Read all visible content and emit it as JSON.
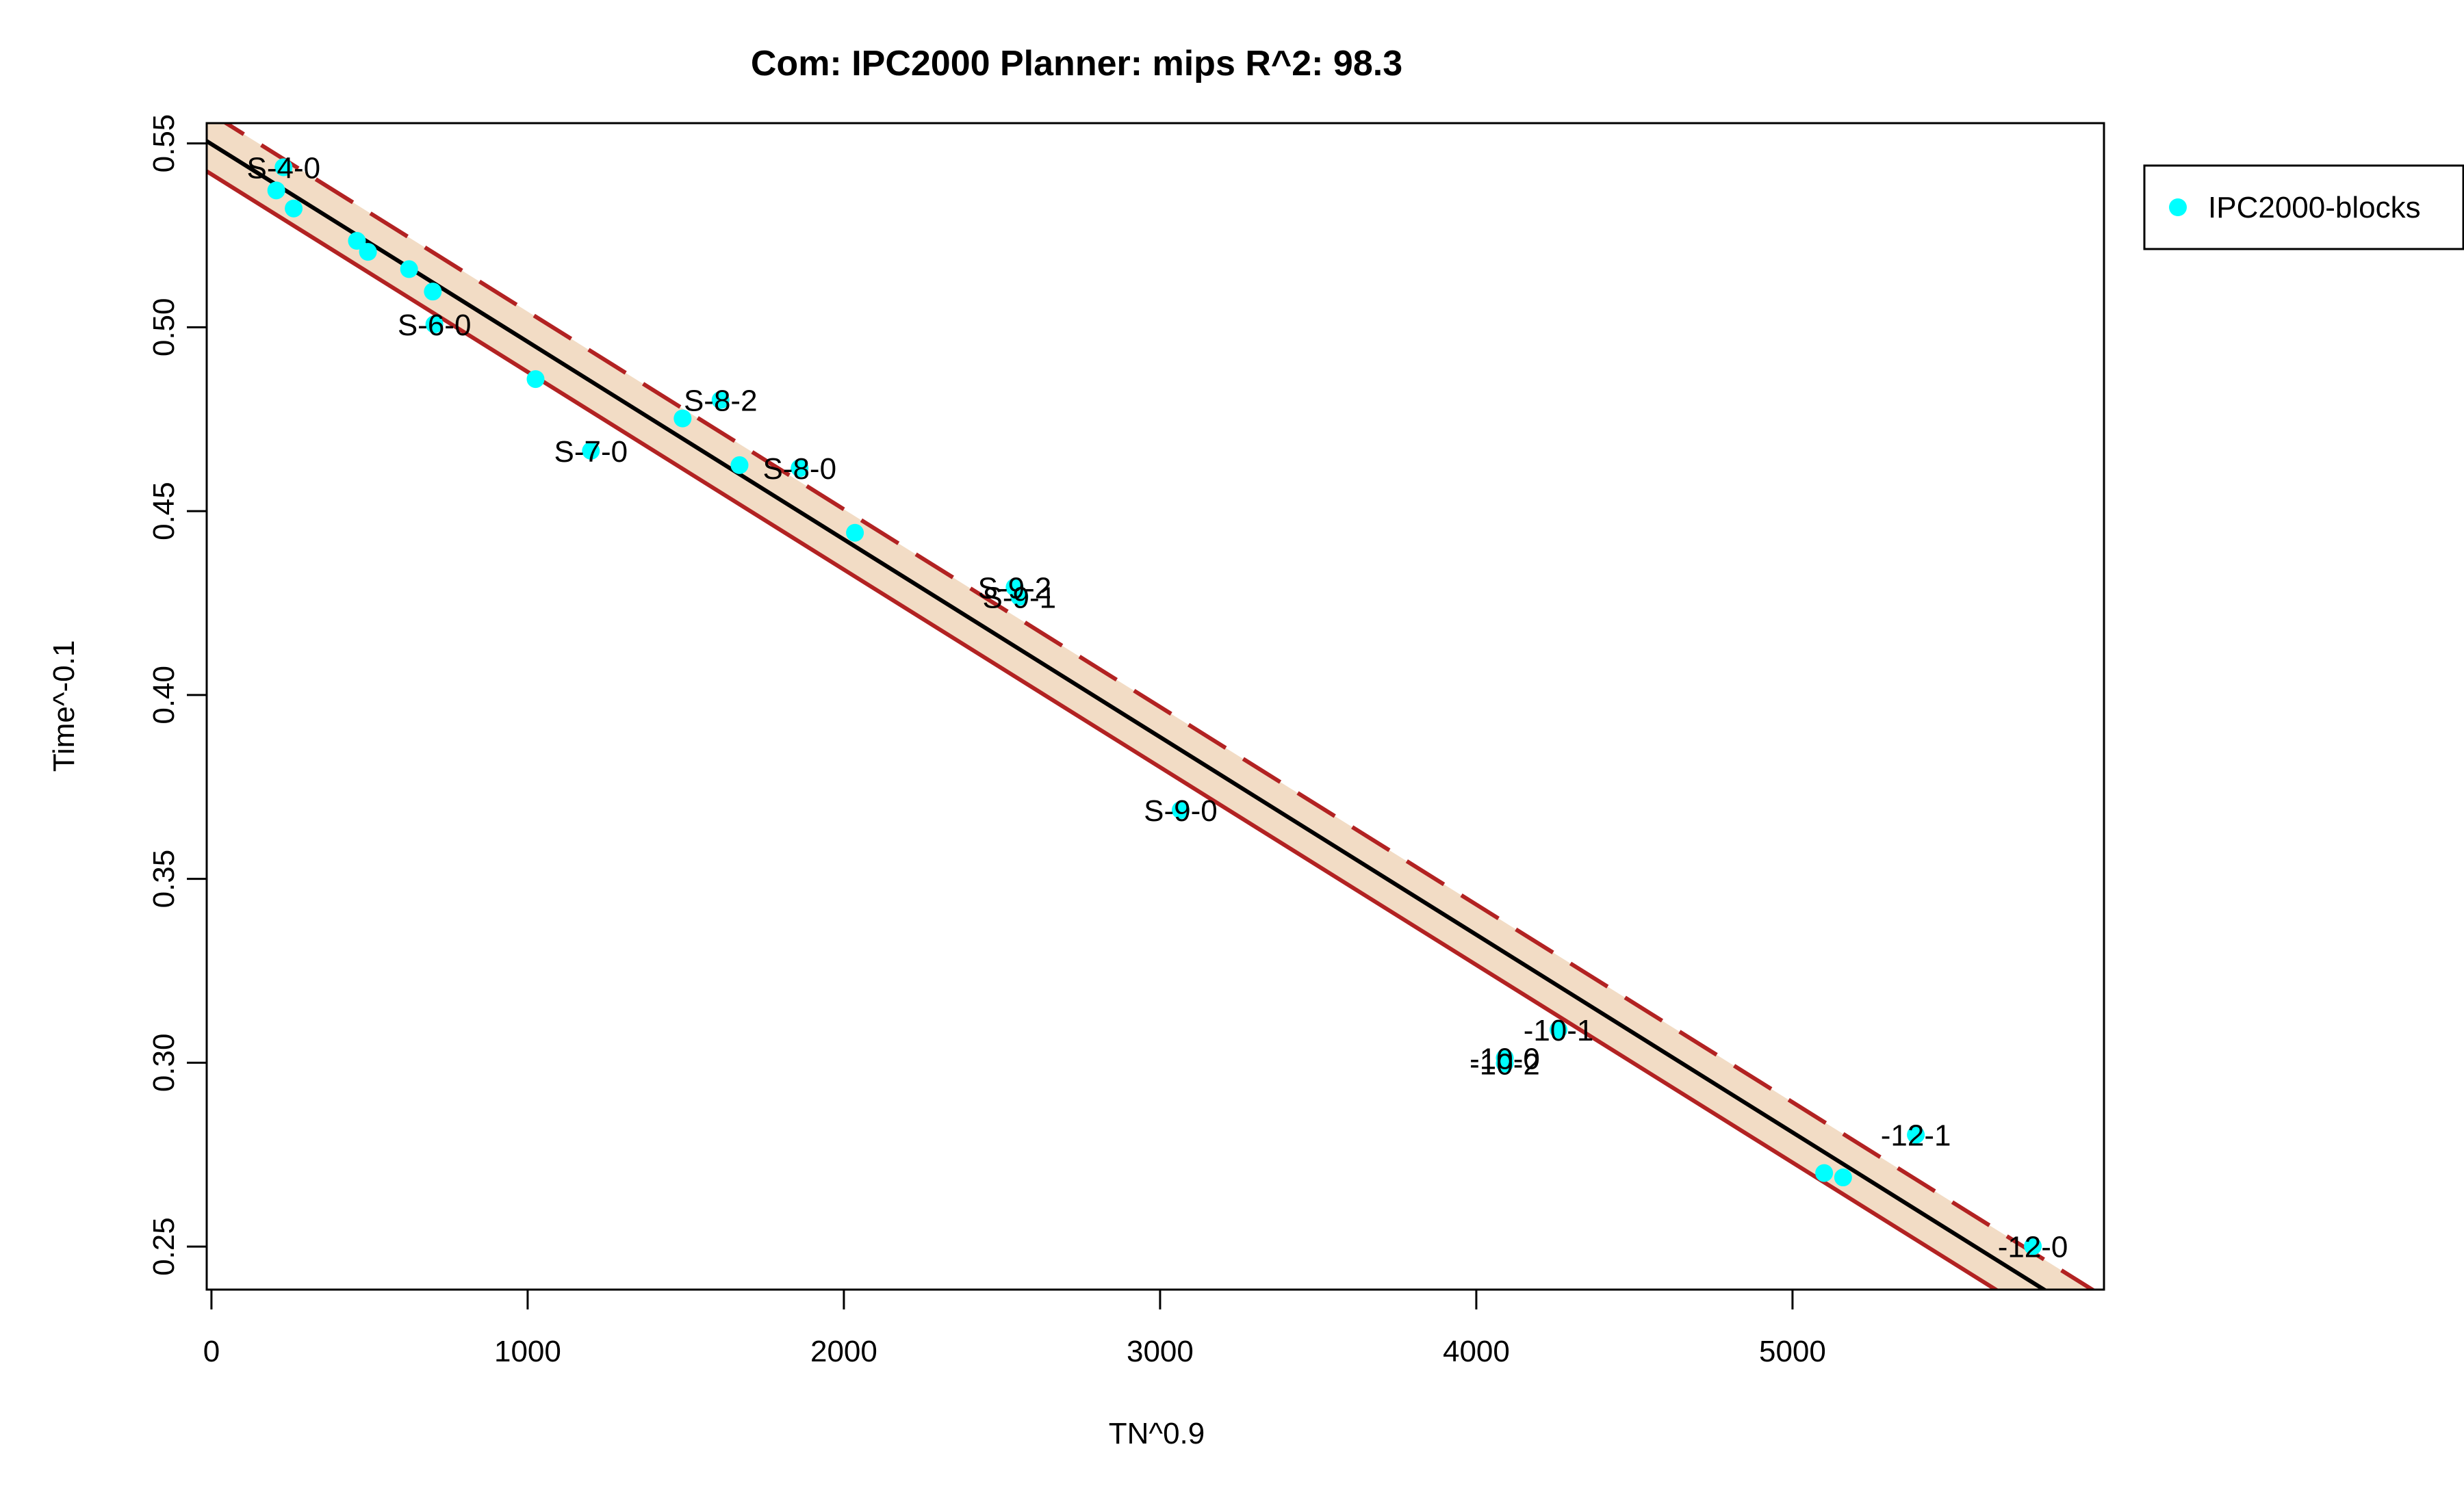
{
  "chart_data": {
    "type": "scatter",
    "title": "Com: IPC2000 Planner: mips R^2: 98.3",
    "xlabel": "TN^0.9",
    "ylabel": "Time^-0.1",
    "xlim": [
      -15,
      5985
    ],
    "ylim": [
      0.2383,
      0.5555
    ],
    "x_ticks": [
      0,
      1000,
      2000,
      3000,
      4000,
      5000
    ],
    "y_ticks": [
      0.25,
      0.3,
      0.35,
      0.4,
      0.45,
      0.5,
      0.55
    ],
    "y_tick_labels": [
      "0.25",
      "0.30",
      "0.35",
      "0.40",
      "0.45",
      "0.50",
      "0.55"
    ],
    "legend": {
      "position": "top-right",
      "entries": [
        {
          "name": "IPC2000-blocks",
          "color": "#00FFFF"
        }
      ]
    },
    "fit": {
      "intercept": 0.5498,
      "slope": -5.375e-05,
      "band_half_width": 0.0082,
      "line_color": "#000000",
      "band_color": "#B22222",
      "band_fill": "#F2DCC5"
    },
    "series": [
      {
        "name": "IPC2000-blocks",
        "color": "#00FFFF",
        "points": [
          {
            "x": 228,
            "y": 0.5435,
            "label": "S-4-0"
          },
          {
            "x": 205,
            "y": 0.5372,
            "label": ""
          },
          {
            "x": 260,
            "y": 0.5323,
            "label": ""
          },
          {
            "x": 460,
            "y": 0.5235,
            "label": ""
          },
          {
            "x": 495,
            "y": 0.5205,
            "label": ""
          },
          {
            "x": 625,
            "y": 0.5158,
            "label": ""
          },
          {
            "x": 700,
            "y": 0.5097,
            "label": ""
          },
          {
            "x": 705,
            "y": 0.5008,
            "label": "S-6-0"
          },
          {
            "x": 1025,
            "y": 0.4859,
            "label": ""
          },
          {
            "x": 1490,
            "y": 0.4752,
            "label": ""
          },
          {
            "x": 1610,
            "y": 0.4802,
            "label": "S-8-2"
          },
          {
            "x": 1200,
            "y": 0.4664,
            "label": "S-7-0"
          },
          {
            "x": 1670,
            "y": 0.4625,
            "label": ""
          },
          {
            "x": 1860,
            "y": 0.4617,
            "label": "S-8-0"
          },
          {
            "x": 2035,
            "y": 0.4441,
            "label": ""
          },
          {
            "x": 2540,
            "y": 0.4293,
            "label": "S-9-2"
          },
          {
            "x": 2555,
            "y": 0.4267,
            "label": "S-9-1"
          },
          {
            "x": 3065,
            "y": 0.3687,
            "label": "S-9-0"
          },
          {
            "x": 4090,
            "y": 0.3013,
            "label": "-10-0"
          },
          {
            "x": 4090,
            "y": 0.2998,
            "label": "-10-2"
          },
          {
            "x": 4260,
            "y": 0.309,
            "label": "-10-1"
          },
          {
            "x": 5100,
            "y": 0.27,
            "label": ""
          },
          {
            "x": 5160,
            "y": 0.2688,
            "label": ""
          },
          {
            "x": 5390,
            "y": 0.2804,
            "label": "-12-1"
          },
          {
            "x": 5760,
            "y": 0.2501,
            "label": "-12-0"
          }
        ]
      }
    ]
  }
}
